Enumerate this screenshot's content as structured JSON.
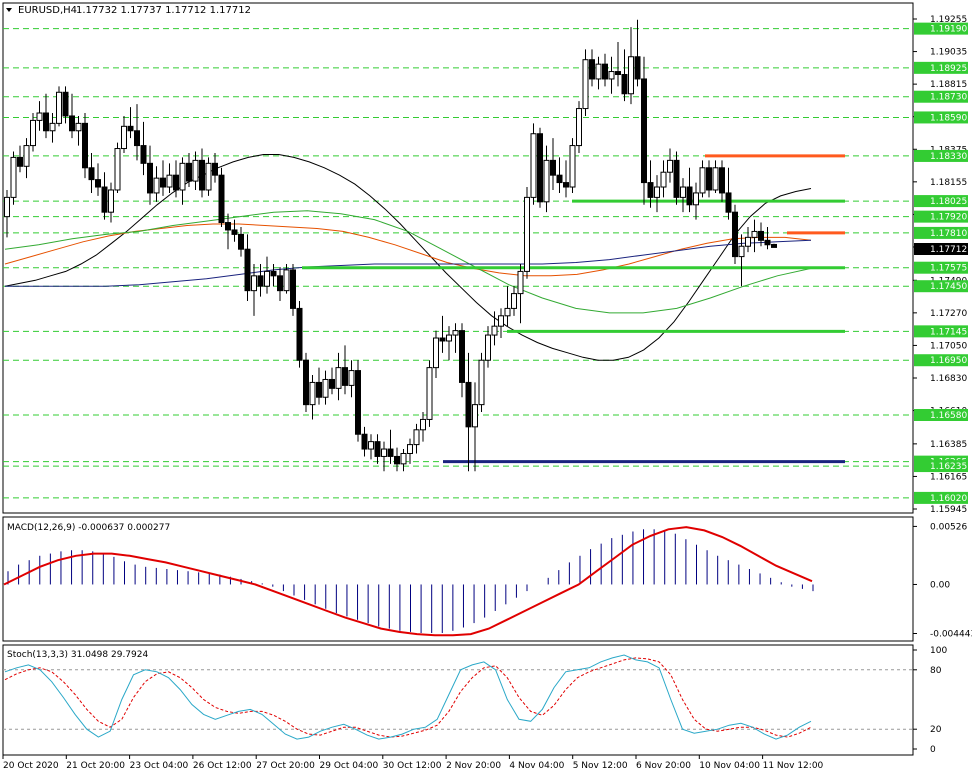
{
  "header": {
    "symbol": "EURUSD,H4",
    "ohlc": "1.17732 1.17737 1.17712 1.17712",
    "current_price": "1.17712"
  },
  "price_axis": {
    "min": 1.15945,
    "max": 1.19255,
    "ticks": [
      "1.19255",
      "1.19035",
      "1.18815",
      "1.18595",
      "1.18375",
      "1.18155",
      "1.17935",
      "1.17715",
      "1.17490",
      "1.17270",
      "1.17050",
      "1.16830",
      "1.16610",
      "1.16385",
      "1.16165",
      "1.15945"
    ],
    "tick_values": [
      1.19255,
      1.19035,
      1.18815,
      1.18595,
      1.18375,
      1.18155,
      1.17935,
      1.17715,
      1.1749,
      1.1727,
      1.1705,
      1.1683,
      1.1661,
      1.16385,
      1.16165,
      1.15945
    ],
    "level_labels": [
      "1.19190",
      "1.18925",
      "1.18730",
      "1.18590",
      "1.18330",
      "1.18025",
      "1.17920",
      "1.17810",
      "1.17575",
      "1.17450",
      "1.17145",
      "1.16950",
      "1.16580",
      "1.16265",
      "1.16235",
      "1.16020"
    ],
    "level_values": [
      1.1919,
      1.18925,
      1.1873,
      1.1859,
      1.1833,
      1.18025,
      1.1792,
      1.1781,
      1.17575,
      1.1745,
      1.17145,
      1.1695,
      1.1658,
      1.16265,
      1.16235,
      1.1602
    ]
  },
  "levels": [
    {
      "price": 1.18025,
      "x_from": 572,
      "x_to": 845,
      "color": "#33cc33"
    },
    {
      "price": 1.17575,
      "x_from": 302,
      "x_to": 845,
      "color": "#33cc33"
    },
    {
      "price": 1.17145,
      "x_from": 507,
      "x_to": 845,
      "color": "#33cc33"
    },
    {
      "price": 1.1833,
      "x_from": 705,
      "x_to": 845,
      "color": "#ff5a1e"
    },
    {
      "price": 1.1781,
      "x_from": 787,
      "x_to": 845,
      "color": "#ff5a1e"
    },
    {
      "price": 1.16265,
      "x_from": 443,
      "x_to": 845,
      "color": "#1a237e"
    }
  ],
  "macd": {
    "label": "MACD(12,26,9) -0.000637 0.000277",
    "ticks": [
      "0.00526",
      "0.00",
      "-0.004443"
    ],
    "tick_values": [
      0.00526,
      0.0,
      -0.004443
    ],
    "min": -0.00476,
    "max": 0.00575
  },
  "stoch": {
    "label": "Stoch(13,3,3) 31.0498 29.7924",
    "ticks": [
      "100",
      "80",
      "20",
      "0"
    ],
    "tick_values": [
      100,
      80,
      20,
      0
    ]
  },
  "time_axis": {
    "labels": [
      "20 Oct 2020",
      "21 Oct 20:00",
      "23 Oct 04:00",
      "26 Oct 12:00",
      "27 Oct 20:00",
      "29 Oct 04:00",
      "30 Oct 12:00",
      "2 Nov 20:00",
      "4 Nov 04:00",
      "5 Nov 12:00",
      "6 Nov 20:00",
      "10 Nov 04:00",
      "11 Nov 12:00"
    ]
  },
  "colors": {
    "bull": "#ffffff",
    "bear": "#000000",
    "grid": "#33cc33",
    "ma_fast": "#000000",
    "ma_orange": "#e65100",
    "ma_green": "#33aa33",
    "ma_blue": "#1a237e",
    "macd_hist": "#000080",
    "macd_signal": "#e00000",
    "stoch_main": "#2aa8c8",
    "stoch_signal": "#e00000"
  },
  "candles": [
    [
      1.1792,
      1.181,
      1.1778,
      1.1805
    ],
    [
      1.1805,
      1.1836,
      1.18,
      1.1832
    ],
    [
      1.1832,
      1.184,
      1.1822,
      1.1826
    ],
    [
      1.1826,
      1.1845,
      1.1818,
      1.184
    ],
    [
      1.184,
      1.1862,
      1.1836,
      1.1857
    ],
    [
      1.1857,
      1.187,
      1.185,
      1.1862
    ],
    [
      1.1862,
      1.1875,
      1.1845,
      1.185
    ],
    [
      1.185,
      1.1862,
      1.1842,
      1.1855
    ],
    [
      1.1855,
      1.188,
      1.1853,
      1.1876
    ],
    [
      1.1876,
      1.188,
      1.1855,
      1.186
    ],
    [
      1.186,
      1.1875,
      1.1845,
      1.185
    ],
    [
      1.185,
      1.186,
      1.184,
      1.1855
    ],
    [
      1.1855,
      1.1862,
      1.1818,
      1.1825
    ],
    [
      1.1825,
      1.1835,
      1.1808,
      1.1817
    ],
    [
      1.1817,
      1.1828,
      1.1806,
      1.1812
    ],
    [
      1.1812,
      1.1822,
      1.179,
      1.1795
    ],
    [
      1.1795,
      1.1815,
      1.1788,
      1.181
    ],
    [
      1.181,
      1.1842,
      1.1808,
      1.1838
    ],
    [
      1.1838,
      1.186,
      1.1835,
      1.1853
    ],
    [
      1.1853,
      1.1866,
      1.1845,
      1.185
    ],
    [
      1.185,
      1.1868,
      1.183,
      1.184
    ],
    [
      1.184,
      1.1856,
      1.182,
      1.1828
    ],
    [
      1.1828,
      1.184,
      1.18,
      1.1808
    ],
    [
      1.1808,
      1.1826,
      1.1802,
      1.1818
    ],
    [
      1.1818,
      1.183,
      1.1806,
      1.1812
    ],
    [
      1.1812,
      1.1828,
      1.1808,
      1.182
    ],
    [
      1.182,
      1.183,
      1.1805,
      1.181
    ],
    [
      1.181,
      1.1832,
      1.18,
      1.1828
    ],
    [
      1.1828,
      1.1835,
      1.1812,
      1.1816
    ],
    [
      1.1816,
      1.1836,
      1.181,
      1.183
    ],
    [
      1.183,
      1.1838,
      1.1805,
      1.181
    ],
    [
      1.181,
      1.1832,
      1.1806,
      1.1828
    ],
    [
      1.1828,
      1.1835,
      1.1815,
      1.182
    ],
    [
      1.182,
      1.1825,
      1.1785,
      1.1788
    ],
    [
      1.1788,
      1.1794,
      1.177,
      1.1783
    ],
    [
      1.1783,
      1.179,
      1.1775,
      1.178
    ],
    [
      1.178,
      1.1785,
      1.1765,
      1.177
    ],
    [
      1.177,
      1.178,
      1.1735,
      1.1742
    ],
    [
      1.1742,
      1.176,
      1.1725,
      1.1752
    ],
    [
      1.1752,
      1.176,
      1.1738,
      1.1745
    ],
    [
      1.1745,
      1.1765,
      1.174,
      1.1755
    ],
    [
      1.1755,
      1.176,
      1.1745,
      1.1752
    ],
    [
      1.1752,
      1.1758,
      1.1735,
      1.1742
    ],
    [
      1.1742,
      1.176,
      1.174,
      1.1756
    ],
    [
      1.1756,
      1.176,
      1.1725,
      1.173
    ],
    [
      1.173,
      1.1735,
      1.169,
      1.1695
    ],
    [
      1.1695,
      1.17,
      1.166,
      1.1665
    ],
    [
      1.1665,
      1.1685,
      1.1655,
      1.168
    ],
    [
      1.168,
      1.169,
      1.1665,
      1.167
    ],
    [
      1.167,
      1.1688,
      1.1665,
      1.1682
    ],
    [
      1.1682,
      1.169,
      1.1672,
      1.1676
    ],
    [
      1.1676,
      1.17,
      1.1668,
      1.169
    ],
    [
      1.169,
      1.1705,
      1.1672,
      1.1678
    ],
    [
      1.1678,
      1.1695,
      1.167,
      1.1688
    ],
    [
      1.1688,
      1.1695,
      1.164,
      1.1645
    ],
    [
      1.1645,
      1.165,
      1.163,
      1.1635
    ],
    [
      1.1635,
      1.1645,
      1.1628,
      1.164
    ],
    [
      1.164,
      1.1645,
      1.1625,
      1.163
    ],
    [
      1.163,
      1.164,
      1.162,
      1.1635
    ],
    [
      1.1635,
      1.1648,
      1.1625,
      1.163
    ],
    [
      1.163,
      1.1636,
      1.162,
      1.1625
    ],
    [
      1.1625,
      1.1635,
      1.162,
      1.1632
    ],
    [
      1.1632,
      1.1642,
      1.1625,
      1.1638
    ],
    [
      1.1638,
      1.1652,
      1.1632,
      1.1648
    ],
    [
      1.1648,
      1.166,
      1.164,
      1.1655
    ],
    [
      1.1655,
      1.1695,
      1.165,
      1.169
    ],
    [
      1.169,
      1.1715,
      1.1683,
      1.171
    ],
    [
      1.171,
      1.1725,
      1.17,
      1.1708
    ],
    [
      1.1708,
      1.1718,
      1.1695,
      1.1712
    ],
    [
      1.1712,
      1.172,
      1.17,
      1.1715
    ],
    [
      1.1715,
      1.172,
      1.167,
      1.168
    ],
    [
      1.168,
      1.17,
      1.162,
      1.165
    ],
    [
      1.165,
      1.168,
      1.162,
      1.1665
    ],
    [
      1.1665,
      1.17,
      1.166,
      1.1695
    ],
    [
      1.1695,
      1.1718,
      1.169,
      1.1712
    ],
    [
      1.1712,
      1.1728,
      1.1705,
      1.1718
    ],
    [
      1.1718,
      1.173,
      1.171,
      1.1725
    ],
    [
      1.1725,
      1.1745,
      1.1718,
      1.173
    ],
    [
      1.173,
      1.1745,
      1.1725,
      1.174
    ],
    [
      1.174,
      1.176,
      1.172,
      1.1755
    ],
    [
      1.1755,
      1.1812,
      1.175,
      1.1805
    ],
    [
      1.1805,
      1.1855,
      1.18,
      1.1848
    ],
    [
      1.1848,
      1.1852,
      1.1798,
      1.1802
    ],
    [
      1.1802,
      1.184,
      1.1795,
      1.183
    ],
    [
      1.183,
      1.1845,
      1.181,
      1.182
    ],
    [
      1.182,
      1.1832,
      1.1808,
      1.1815
    ],
    [
      1.1815,
      1.183,
      1.1805,
      1.1812
    ],
    [
      1.1812,
      1.1845,
      1.1808,
      1.184
    ],
    [
      1.184,
      1.187,
      1.1835,
      1.1865
    ],
    [
      1.1865,
      1.1905,
      1.186,
      1.1898
    ],
    [
      1.1898,
      1.1905,
      1.188,
      1.1885
    ],
    [
      1.1885,
      1.19,
      1.1878,
      1.1895
    ],
    [
      1.1895,
      1.1902,
      1.188,
      1.1885
    ],
    [
      1.1885,
      1.19,
      1.1875,
      1.189
    ],
    [
      1.189,
      1.191,
      1.188,
      1.1888
    ],
    [
      1.1888,
      1.1905,
      1.187,
      1.1875
    ],
    [
      1.1875,
      1.192,
      1.1868,
      1.19
    ],
    [
      1.19,
      1.1925,
      1.188,
      1.1885
    ],
    [
      1.1885,
      1.19,
      1.18,
      1.1815
    ],
    [
      1.1815,
      1.183,
      1.1798,
      1.1805
    ],
    [
      1.1805,
      1.182,
      1.1795,
      1.1812
    ],
    [
      1.1812,
      1.183,
      1.1805,
      1.1822
    ],
    [
      1.1822,
      1.1838,
      1.1815,
      1.183
    ],
    [
      1.183,
      1.1836,
      1.18,
      1.1805
    ],
    [
      1.1805,
      1.1818,
      1.1795,
      1.1812
    ],
    [
      1.1812,
      1.1825,
      1.1795,
      1.18
    ],
    [
      1.18,
      1.1815,
      1.179,
      1.1808
    ],
    [
      1.1808,
      1.183,
      1.1805,
      1.1825
    ],
    [
      1.1825,
      1.183,
      1.1805,
      1.181
    ],
    [
      1.181,
      1.183,
      1.1808,
      1.1825
    ],
    [
      1.1825,
      1.183,
      1.1802,
      1.1808
    ],
    [
      1.1808,
      1.1825,
      1.179,
      1.1795
    ],
    [
      1.1795,
      1.18,
      1.176,
      1.1765
    ],
    [
      1.1765,
      1.178,
      1.1745,
      1.1772
    ],
    [
      1.1772,
      1.1785,
      1.1768,
      1.1778
    ],
    [
      1.1778,
      1.179,
      1.1768,
      1.1782
    ],
    [
      1.1782,
      1.1788,
      1.1772,
      1.1776
    ],
    [
      1.1776,
      1.1785,
      1.177,
      1.1773
    ],
    [
      1.17732,
      1.17737,
      1.17712,
      1.17712
    ]
  ],
  "ma_fast": [
    1.1745,
    1.1747,
    1.1749,
    1.1752,
    1.1755,
    1.176,
    1.1766,
    1.1774,
    1.1782,
    1.1791,
    1.18,
    1.1808,
    1.1815,
    1.182,
    1.1825,
    1.1829,
    1.1832,
    1.1834,
    1.1834,
    1.1832,
    1.1829,
    1.1825,
    1.182,
    1.1814,
    1.1806,
    1.1797,
    1.1787,
    1.1776,
    1.1765,
    1.1754,
    1.1744,
    1.1734,
    1.1725,
    1.1718,
    1.1712,
    1.1707,
    1.1703,
    1.17,
    1.1697,
    1.1695,
    1.1695,
    1.1697,
    1.1702,
    1.171,
    1.1721,
    1.1735,
    1.175,
    1.1765,
    1.178,
    1.1792,
    1.1801,
    1.1806,
    1.1809,
    1.1811
  ],
  "ma_orange": [
    1.176,
    1.1765,
    1.177,
    1.1775,
    1.1779,
    1.1782,
    1.1784,
    1.1786,
    1.1787,
    1.1787,
    1.1786,
    1.1785,
    1.1784,
    1.1782,
    1.1778,
    1.1773,
    1.1767,
    1.1761,
    1.1757,
    1.1754,
    1.1752,
    1.1752,
    1.1753,
    1.1756,
    1.176,
    1.1765,
    1.177,
    1.1774,
    1.1777,
    1.1778,
    1.1778,
    1.1776
  ],
  "ma_green": [
    1.177,
    1.1773,
    1.1777,
    1.178,
    1.1782,
    1.1786,
    1.1789,
    1.1792,
    1.1795,
    1.1796,
    1.1794,
    1.179,
    1.1782,
    1.177,
    1.1758,
    1.1746,
    1.1737,
    1.173,
    1.1727,
    1.1727,
    1.173,
    1.1737,
    1.1745,
    1.1752,
    1.1757
  ],
  "ma_blue": [
    1.1745,
    1.1745,
    1.1745,
    1.1745,
    1.1746,
    1.1748,
    1.175,
    1.1753,
    1.1756,
    1.1758,
    1.1759,
    1.176,
    1.176,
    1.176,
    1.176,
    1.176,
    1.176,
    1.1761,
    1.1763,
    1.1766,
    1.1769,
    1.1772,
    1.1774,
    1.1775,
    1.1776
  ],
  "macd_hist": [
    0.0012,
    0.0018,
    0.0022,
    0.0026,
    0.0028,
    0.003,
    0.0031,
    0.0031,
    0.003,
    0.0028,
    0.0025,
    0.0021,
    0.0018,
    0.0016,
    0.0015,
    0.0014,
    0.0013,
    0.0012,
    0.0011,
    0.001,
    0.0009,
    0.0007,
    0.0005,
    0.0003,
    0.0001,
    -0.0002,
    -0.0006,
    -0.001,
    -0.0014,
    -0.0018,
    -0.0022,
    -0.0026,
    -0.0029,
    -0.0032,
    -0.0035,
    -0.0038,
    -0.004,
    -0.0042,
    -0.0043,
    -0.0044,
    -0.0044,
    -0.0044,
    -0.0042,
    -0.0039,
    -0.0035,
    -0.003,
    -0.0024,
    -0.0018,
    -0.0012,
    -0.0006,
    0.0,
    0.0006,
    0.0013,
    0.002,
    0.0026,
    0.0032,
    0.0037,
    0.0042,
    0.0045,
    0.0048,
    0.005,
    0.005,
    0.0049,
    0.0046,
    0.0041,
    0.0036,
    0.0031,
    0.0026,
    0.0022,
    0.0018,
    0.0014,
    0.001,
    0.0006,
    0.0002,
    -0.0002,
    -0.0004,
    -0.0006
  ],
  "macd_signal": [
    0.0,
    0.0008,
    0.0016,
    0.0022,
    0.0026,
    0.0028,
    0.0028,
    0.0026,
    0.0023,
    0.002,
    0.0016,
    0.0012,
    0.0008,
    0.0004,
    0.0,
    -0.0006,
    -0.0012,
    -0.0018,
    -0.0024,
    -0.003,
    -0.0035,
    -0.004,
    -0.0043,
    -0.0045,
    -0.0046,
    -0.0046,
    -0.0045,
    -0.004,
    -0.0032,
    -0.0024,
    -0.0016,
    -0.0008,
    0.0,
    0.0012,
    0.0024,
    0.0036,
    0.0044,
    0.005,
    0.0052,
    0.0049,
    0.0043,
    0.0035,
    0.0026,
    0.0017,
    0.001,
    0.0003
  ],
  "stoch_main": [
    78,
    82,
    85,
    80,
    68,
    52,
    35,
    20,
    12,
    18,
    50,
    75,
    80,
    78,
    72,
    60,
    45,
    35,
    30,
    34,
    38,
    40,
    35,
    25,
    15,
    10,
    12,
    18,
    22,
    25,
    20,
    14,
    10,
    12,
    15,
    20,
    22,
    30,
    55,
    80,
    85,
    88,
    80,
    50,
    30,
    28,
    40,
    62,
    78,
    80,
    82,
    88,
    92,
    95,
    90,
    88,
    82,
    50,
    20,
    16,
    18,
    20,
    24,
    26,
    22,
    15,
    10,
    14,
    22,
    28
  ],
  "stoch_signal": [
    70,
    76,
    80,
    82,
    78,
    68,
    55,
    40,
    28,
    22,
    30,
    52,
    68,
    76,
    78,
    72,
    62,
    50,
    42,
    38,
    36,
    38,
    38,
    34,
    28,
    20,
    15,
    14,
    18,
    22,
    22,
    18,
    14,
    12,
    13,
    16,
    19,
    24,
    38,
    58,
    72,
    82,
    84,
    72,
    52,
    38,
    34,
    44,
    60,
    72,
    78,
    82,
    86,
    90,
    92,
    91,
    88,
    75,
    50,
    30,
    20,
    18,
    20,
    22,
    22,
    19,
    14,
    12,
    16,
    22
  ]
}
